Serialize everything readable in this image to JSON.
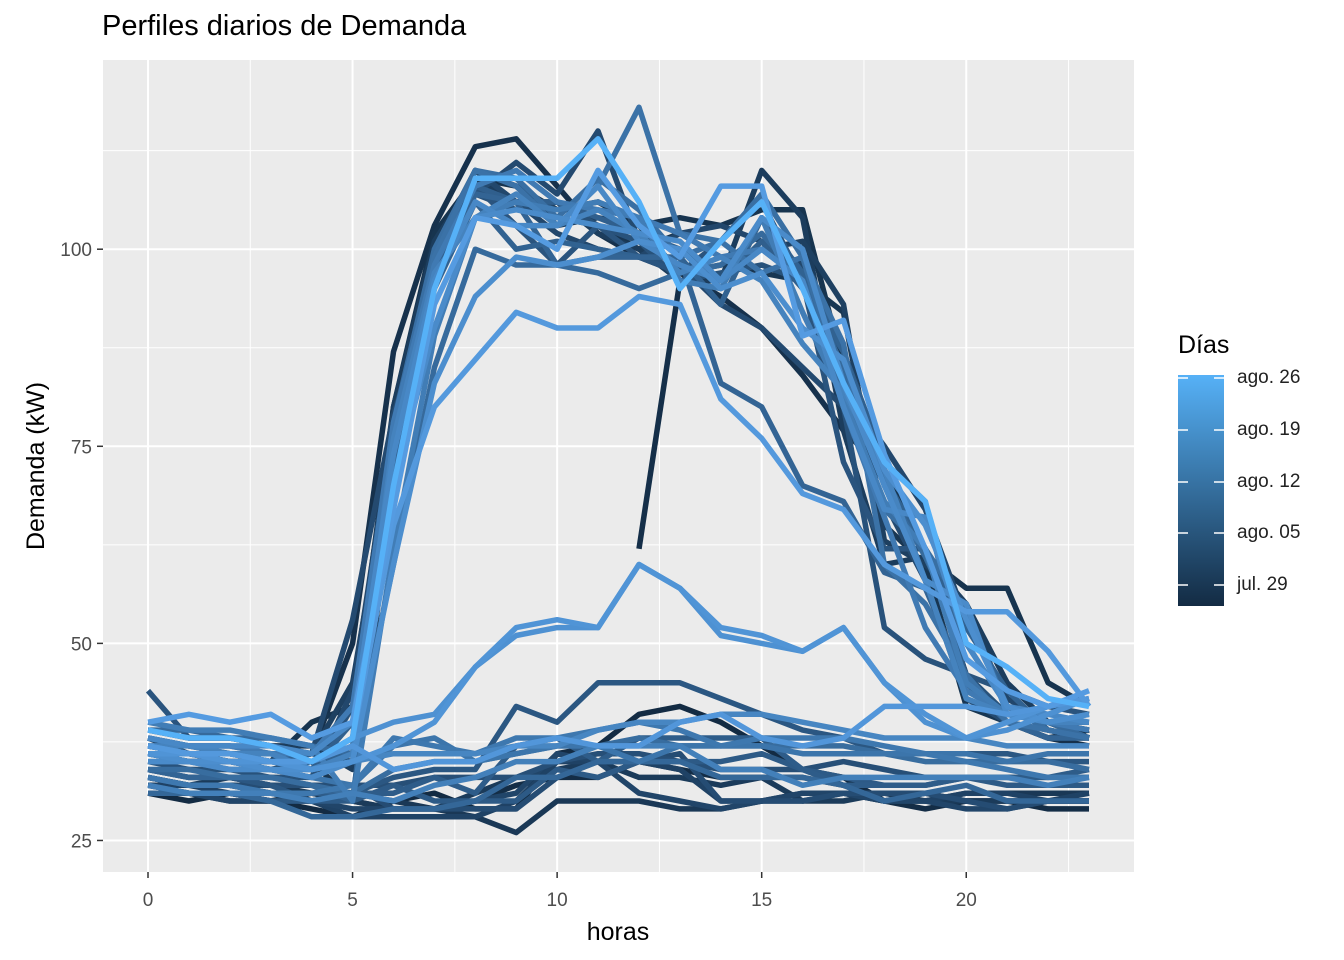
{
  "chart_data": {
    "type": "line",
    "title": "Perfiles diarios de Demanda",
    "xlabel": "horas",
    "ylabel": "Demanda (kW)",
    "xlim": [
      -1.1,
      24.1
    ],
    "ylim": [
      21,
      124
    ],
    "x_ticks": [
      0,
      5,
      10,
      15,
      20
    ],
    "y_ticks": [
      25,
      50,
      75,
      100
    ],
    "grid": true,
    "panel_color": "#EBEBEB",
    "legend": {
      "title": "Días",
      "position": "right",
      "gradient": [
        "#132B43",
        "#56B1F7"
      ],
      "labels": [
        "ago. 26",
        "ago. 19",
        "ago. 12",
        "ago. 05",
        "jul. 29"
      ]
    },
    "x": [
      0,
      1,
      2,
      3,
      4,
      5,
      6,
      7,
      8,
      9,
      10,
      11,
      12,
      13,
      14,
      15,
      16,
      17,
      18,
      19,
      20,
      21,
      22,
      23
    ],
    "series": [
      {
        "color": "#132B43",
        "values": [
          31,
          30,
          31,
          30,
          29,
          28,
          30,
          31,
          29,
          29,
          36,
          37,
          41,
          42,
          40,
          37,
          34,
          33,
          30,
          31,
          30,
          30,
          30,
          30
        ]
      },
      {
        "color": "#142D46",
        "values": [
          32,
          31,
          30,
          30,
          31,
          30,
          29,
          29,
          30,
          32,
          33,
          33,
          35,
          34,
          33,
          33,
          33,
          32,
          30,
          29,
          30,
          30,
          29,
          29
        ]
      },
      {
        "color": "#152F49",
        "values": [
          null,
          null,
          null,
          null,
          null,
          null,
          null,
          null,
          null,
          null,
          null,
          null,
          62,
          96,
          null,
          null,
          null,
          null,
          null,
          null,
          null,
          null,
          null,
          null
        ]
      },
      {
        "color": "#16314C",
        "values": [
          37,
          36,
          35,
          35,
          36,
          50,
          87,
          103,
          113,
          114,
          108,
          102,
          99,
          97,
          94,
          90,
          84,
          77,
          72,
          62,
          46,
          40,
          38,
          37
        ]
      },
      {
        "color": "#17344F",
        "values": [
          38,
          37,
          36,
          35,
          40,
          42,
          80,
          102,
          109,
          108,
          105,
          106,
          103,
          104,
          103,
          105,
          105,
          85,
          72,
          61,
          57,
          57,
          45,
          42
        ]
      },
      {
        "color": "#183652",
        "values": [
          36,
          35,
          35,
          34,
          35,
          30,
          70,
          96,
          108,
          106,
          104,
          103,
          100,
          102,
          99,
          97,
          96,
          92,
          65,
          60,
          42,
          40,
          38,
          39
        ]
      },
      {
        "color": "#1A3856",
        "values": [
          33,
          32,
          32,
          31,
          30,
          31,
          30,
          29,
          28,
          26,
          30,
          30,
          30,
          29,
          29,
          30,
          31,
          31,
          30,
          30,
          31,
          31,
          31,
          31
        ]
      },
      {
        "color": "#1B3B5A",
        "values": [
          33,
          32,
          33,
          32,
          31,
          30,
          29,
          29,
          31,
          33,
          34,
          35,
          33,
          33,
          32,
          33,
          30,
          30,
          31,
          30,
          30,
          30,
          30,
          30
        ]
      },
      {
        "color": "#1C3D5D",
        "values": [
          39,
          38,
          38,
          37,
          37,
          34,
          80,
          101,
          109,
          106,
          106,
          102,
          100,
          96,
          96,
          110,
          104,
          77,
          60,
          61,
          55,
          45,
          40,
          38
        ]
      },
      {
        "color": "#1E4061",
        "values": [
          37,
          36,
          35,
          35,
          36,
          45,
          75,
          98,
          110,
          108,
          103,
          104,
          103,
          97,
          98,
          100,
          101,
          93,
          63,
          60,
          55,
          42,
          40,
          38
        ]
      },
      {
        "color": "#1F4265",
        "values": [
          32,
          32,
          31,
          30,
          30,
          28,
          28,
          28,
          28,
          30,
          35,
          35,
          35,
          34,
          30,
          30,
          30,
          31,
          30,
          30,
          31,
          31,
          30,
          31
        ]
      },
      {
        "color": "#214569",
        "values": [
          31,
          31,
          30,
          30,
          30,
          29,
          29,
          29,
          30,
          31,
          36,
          35,
          31,
          30,
          29,
          30,
          31,
          31,
          30,
          30,
          29,
          29,
          30,
          30
        ]
      },
      {
        "color": "#22476C",
        "values": [
          36,
          35,
          35,
          34,
          33,
          44,
          78,
          100,
          110,
          106,
          102,
          100,
          99,
          102,
          103,
          101,
          98,
          82,
          75,
          67,
          53,
          43,
          40,
          39
        ]
      },
      {
        "color": "#244A70",
        "values": [
          38,
          36,
          36,
          35,
          36,
          53,
          79,
          96,
          107,
          111,
          107,
          115,
          101,
          98,
          93,
          90,
          85,
          80,
          68,
          58,
          43,
          40,
          38,
          38
        ]
      },
      {
        "color": "#254C73",
        "values": [
          33,
          32,
          32,
          32,
          32,
          32,
          29,
          29,
          29,
          29,
          33,
          35,
          35,
          36,
          30,
          30,
          30,
          31,
          31,
          31,
          30,
          29,
          30,
          30
        ]
      },
      {
        "color": "#274F77",
        "values": [
          34,
          33,
          33,
          32,
          32,
          32,
          32,
          33,
          33,
          33,
          35,
          36,
          36,
          35,
          34,
          34,
          34,
          35,
          34,
          33,
          33,
          33,
          33,
          33
        ]
      },
      {
        "color": "#28527B",
        "values": [
          35,
          34,
          34,
          33,
          33,
          42,
          78,
          97,
          107,
          105,
          106,
          103,
          101,
          96,
          97,
          98,
          96,
          80,
          52,
          48,
          46,
          41,
          40,
          39
        ]
      },
      {
        "color": "#2A547E",
        "values": [
          44,
          38,
          38,
          37,
          36,
          35,
          75,
          98,
          108,
          103,
          98,
          103,
          99,
          97,
          101,
          106,
          96,
          73,
          62,
          62,
          46,
          44,
          42,
          41
        ]
      },
      {
        "color": "#2B5782",
        "values": [
          34,
          33,
          33,
          32,
          30,
          31,
          33,
          34,
          34,
          42,
          40,
          45,
          45,
          45,
          43,
          41,
          39,
          38,
          36,
          36,
          36,
          36,
          35,
          35
        ]
      },
      {
        "color": "#2D5A86",
        "values": [
          32,
          31,
          31,
          30,
          30,
          30,
          32,
          30,
          30,
          30,
          34,
          33,
          35,
          35,
          35,
          36,
          34,
          33,
          32,
          32,
          33,
          32,
          32,
          32
        ]
      },
      {
        "color": "#2E5C89",
        "values": [
          33,
          32,
          32,
          31,
          31,
          31,
          31,
          33,
          31,
          37,
          38,
          35,
          38,
          38,
          38,
          38,
          34,
          32,
          32,
          32,
          33,
          33,
          33,
          34
        ]
      },
      {
        "color": "#305F8D",
        "values": [
          36,
          35,
          35,
          35,
          34,
          40,
          72,
          96,
          108,
          106,
          106,
          104,
          102,
          100,
          96,
          101,
          95,
          87,
          73,
          68,
          45,
          40,
          39,
          38
        ]
      },
      {
        "color": "#316291",
        "values": [
          38,
          37,
          37,
          36,
          35,
          36,
          70,
          95,
          106,
          100,
          101,
          100,
          99,
          99,
          93,
          104,
          97,
          87,
          71,
          62,
          52,
          44,
          39,
          38
        ]
      },
      {
        "color": "#336494",
        "values": [
          34,
          33,
          33,
          33,
          32,
          30,
          72,
          96,
          107,
          106,
          98,
          99,
          99,
          99,
          83,
          80,
          70,
          68,
          59,
          57,
          45,
          40,
          38,
          38
        ]
      },
      {
        "color": "#346798",
        "values": [
          31,
          31,
          31,
          30,
          28,
          28,
          29,
          29,
          30,
          33,
          33,
          35,
          35,
          35,
          33,
          33,
          33,
          32,
          30,
          31,
          32,
          30,
          30,
          30
        ]
      },
      {
        "color": "#366A9C",
        "values": [
          39,
          39,
          38,
          38,
          37,
          36,
          60,
          85,
          100,
          98,
          98,
          97,
          95,
          97,
          98,
          102,
          96,
          85,
          70,
          61,
          50,
          42,
          40,
          38
        ]
      },
      {
        "color": "#386D9F",
        "values": [
          34,
          34,
          33,
          33,
          32,
          31,
          34,
          35,
          35,
          36,
          37,
          37,
          38,
          37,
          37,
          37,
          37,
          37,
          36,
          35,
          35,
          35,
          35,
          34
        ]
      },
      {
        "color": "#396FA3",
        "values": [
          37,
          36,
          36,
          35,
          35,
          38,
          78,
          100,
          110,
          109,
          104,
          109,
          105,
          99,
          101,
          107,
          99,
          82,
          67,
          62,
          54,
          42,
          39,
          38
        ]
      },
      {
        "color": "#3B72A7",
        "values": [
          37,
          36,
          36,
          35,
          35,
          37,
          75,
          99,
          110,
          108,
          103,
          108,
          118,
          102,
          101,
          97,
          99,
          88,
          60,
          55,
          46,
          40,
          39,
          38
        ]
      },
      {
        "color": "#3C75AB",
        "values": [
          35,
          35,
          34,
          34,
          33,
          32,
          37,
          38,
          35,
          36,
          37,
          37,
          35,
          37,
          37,
          37,
          36,
          36,
          36,
          36,
          36,
          35,
          36,
          36
        ]
      },
      {
        "color": "#3E78AF",
        "values": [
          33,
          32,
          32,
          31,
          31,
          32,
          38,
          37,
          36,
          38,
          38,
          39,
          40,
          39,
          37,
          38,
          38,
          38,
          37,
          36,
          35,
          34,
          33,
          33
        ]
      },
      {
        "color": "#407AB3",
        "values": [
          38,
          37,
          37,
          36,
          36,
          42,
          78,
          98,
          108,
          110,
          106,
          105,
          104,
          102,
          99,
          100,
          96,
          80,
          66,
          52,
          44,
          41,
          40,
          39
        ]
      },
      {
        "color": "#417DB6",
        "values": [
          40,
          39,
          39,
          38,
          37,
          30,
          62,
          89,
          104,
          106,
          105,
          106,
          104,
          96,
          95,
          104,
          92,
          81,
          68,
          62,
          45,
          41,
          40,
          40
        ]
      },
      {
        "color": "#4380BA",
        "values": [
          32,
          31,
          31,
          31,
          30,
          31,
          30,
          32,
          33,
          35,
          35,
          37,
          37,
          37,
          34,
          34,
          32,
          33,
          33,
          33,
          33,
          33,
          32,
          33
        ]
      },
      {
        "color": "#4583BE",
        "values": [
          37,
          37,
          36,
          36,
          34,
          36,
          76,
          97,
          104,
          107,
          103,
          105,
          102,
          97,
          99,
          96,
          88,
          82,
          72,
          58,
          43,
          41,
          40,
          40
        ]
      },
      {
        "color": "#4786C2",
        "values": [
          36,
          35,
          35,
          34,
          34,
          35,
          36,
          36,
          36,
          37,
          37,
          39,
          40,
          40,
          41,
          41,
          40,
          39,
          38,
          38,
          38,
          37,
          37,
          37
        ]
      },
      {
        "color": "#4888C6",
        "values": [
          38,
          37,
          37,
          37,
          36,
          40,
          74,
          96,
          106,
          103,
          103,
          108,
          101,
          98,
          96,
          100,
          96,
          80,
          67,
          66,
          50,
          42,
          41,
          40
        ]
      },
      {
        "color": "#4A8BCA",
        "values": [
          35,
          35,
          34,
          34,
          33,
          35,
          70,
          90,
          104,
          105,
          104,
          103,
          102,
          101,
          96,
          104,
          100,
          83,
          70,
          58,
          55,
          41,
          40,
          41
        ]
      },
      {
        "color": "#4C8ECE",
        "values": [
          36,
          35,
          35,
          34,
          34,
          35,
          60,
          83,
          94,
          99,
          98,
          99,
          101,
          100,
          95,
          97,
          90,
          86,
          72,
          65,
          53,
          42,
          40,
          41
        ]
      },
      {
        "color": "#4E91D2",
        "values": [
          36,
          36,
          36,
          35,
          35,
          38,
          40,
          41,
          47,
          51,
          52,
          52,
          60,
          57,
          51,
          50,
          49,
          52,
          45,
          40,
          38,
          39,
          41,
          43
        ]
      },
      {
        "color": "#5094D6",
        "values": [
          36,
          36,
          35,
          35,
          34,
          35,
          37,
          40,
          47,
          52,
          53,
          52,
          60,
          57,
          52,
          51,
          49,
          52,
          45,
          41,
          38,
          40,
          42,
          43
        ]
      },
      {
        "color": "#5296DA",
        "values": [
          37,
          36,
          36,
          35,
          35,
          37,
          34,
          35,
          35,
          37,
          38,
          37,
          37,
          40,
          41,
          38,
          37,
          38,
          42,
          42,
          42,
          41,
          42,
          43
        ]
      },
      {
        "color": "#5499DD",
        "values": [
          37,
          36,
          36,
          35,
          35,
          38,
          65,
          80,
          86,
          92,
          90,
          90,
          94,
          93,
          81,
          76,
          69,
          67,
          60,
          57,
          54,
          54,
          49,
          42
        ]
      },
      {
        "color": "#559BE1",
        "values": [
          40,
          41,
          40,
          41,
          38,
          40,
          67,
          93,
          104,
          103,
          100,
          110,
          103,
          99,
          108,
          108,
          89,
          91,
          74,
          62,
          48,
          44,
          42,
          44
        ]
      },
      {
        "color": "#56B1F7",
        "values": [
          39,
          38,
          38,
          37,
          35,
          38,
          70,
          95,
          109,
          109,
          109,
          114,
          106,
          95,
          101,
          106,
          95,
          83,
          73,
          68,
          50,
          47,
          43,
          42
        ]
      }
    ]
  }
}
